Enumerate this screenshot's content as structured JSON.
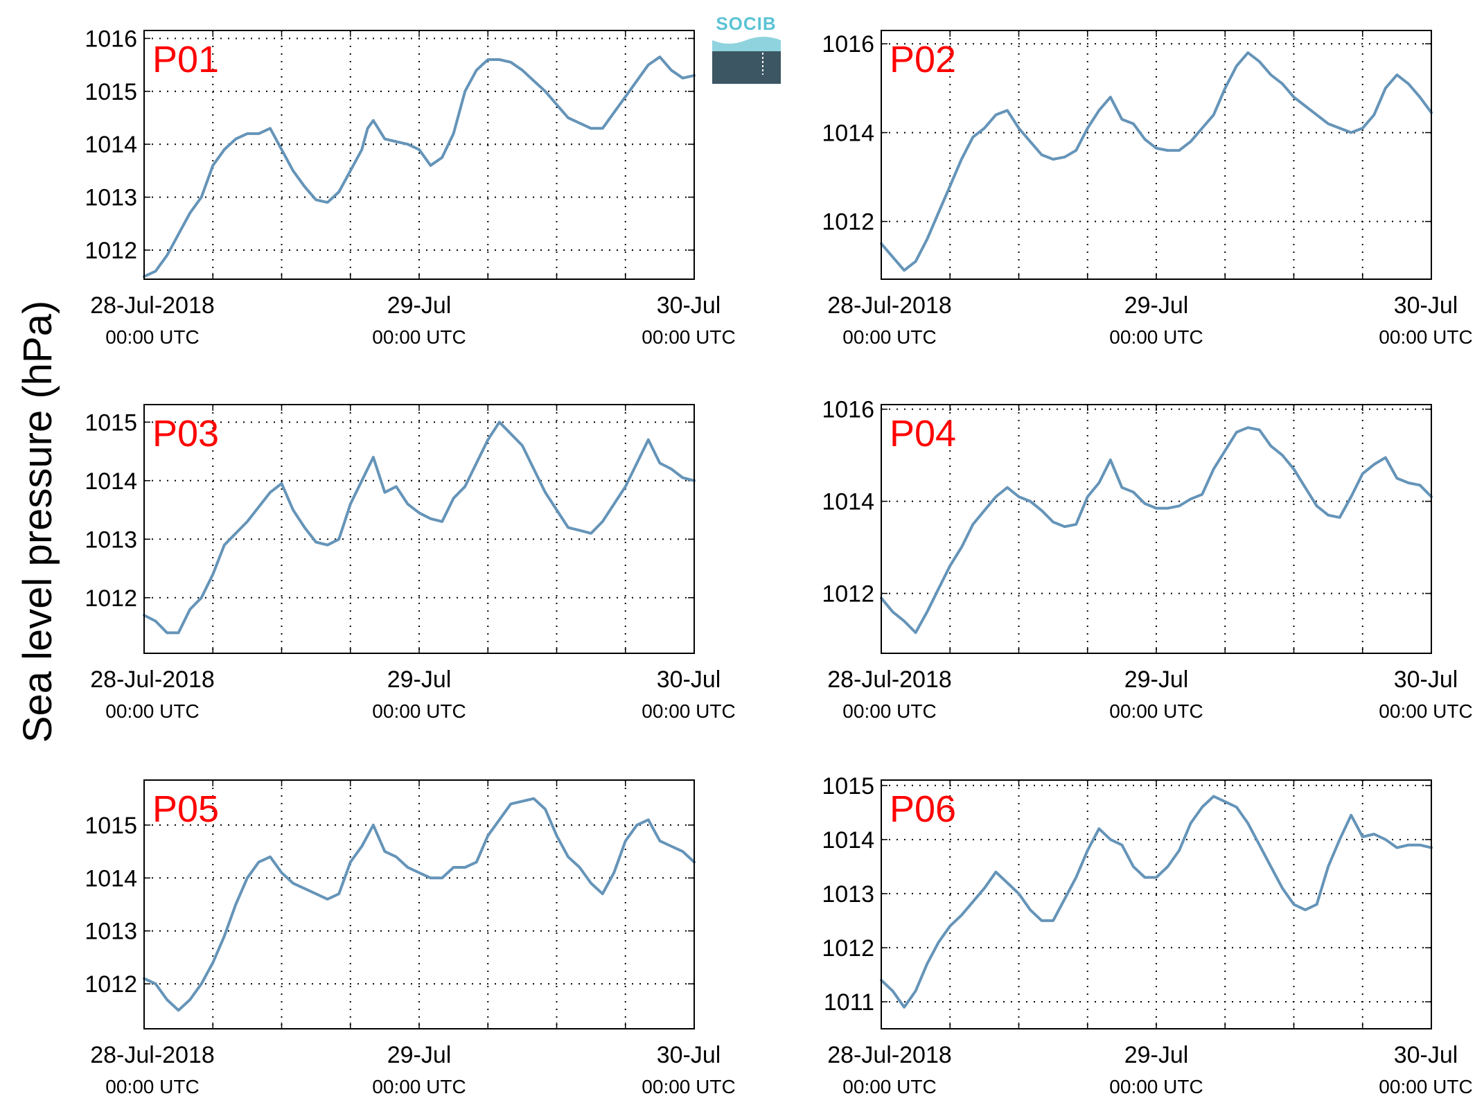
{
  "figure": {
    "ylabel": "Sea level pressure (hPa)",
    "logo_text": "SOCIB",
    "line_color": "#6594b8",
    "label_color": "#ff0000",
    "x_tick_dates": [
      "28-Jul-2018",
      "29-Jul",
      "30-Jul"
    ],
    "x_tick_times": [
      "00:00 UTC",
      "00:00 UTC",
      "00:00 UTC"
    ]
  },
  "chart_data": [
    {
      "type": "line",
      "title": "P01",
      "xlim": [
        0,
        48
      ],
      "ylim": [
        1011.45,
        1016.15
      ],
      "yticks": [
        1012,
        1013,
        1014,
        1015,
        1016
      ],
      "x": [
        0,
        1,
        2,
        3,
        4,
        5,
        6,
        7,
        8,
        9,
        10,
        11,
        12,
        13,
        14,
        15,
        16,
        17,
        17.5,
        18,
        19,
        19.5,
        20,
        21,
        22,
        23,
        24,
        25,
        26,
        27,
        28,
        29,
        30,
        31,
        32,
        33,
        34,
        35,
        36,
        37,
        38,
        39,
        40,
        41,
        42,
        43,
        44,
        45,
        46,
        47,
        48
      ],
      "y": [
        1011.5,
        1011.6,
        1011.9,
        1012.3,
        1012.7,
        1013.0,
        1013.6,
        1013.9,
        1014.1,
        1014.2,
        1014.2,
        1014.3,
        1013.9,
        1013.5,
        1013.2,
        1012.95,
        1012.9,
        1013.1,
        1013.3,
        1013.5,
        1013.9,
        1014.3,
        1014.45,
        1014.1,
        1014.05,
        1014.0,
        1013.9,
        1013.6,
        1013.75,
        1014.2,
        1015.0,
        1015.4,
        1015.6,
        1015.6,
        1015.55,
        1015.4,
        1015.2,
        1015.0,
        1014.75,
        1014.5,
        1014.4,
        1014.3,
        1014.3,
        1014.6,
        1014.9,
        1015.2,
        1015.5,
        1015.65,
        1015.4,
        1015.25,
        1015.3
      ]
    },
    {
      "type": "line",
      "title": "P02",
      "xlim": [
        0,
        48
      ],
      "ylim": [
        1010.7,
        1016.3
      ],
      "yticks": [
        1012,
        1014,
        1016
      ],
      "x": [
        0,
        1,
        2,
        3,
        4,
        5,
        6,
        7,
        8,
        9,
        10,
        11,
        12,
        13,
        14,
        15,
        16,
        17,
        18,
        19,
        20,
        21,
        22,
        23,
        24,
        25,
        26,
        27,
        28,
        29,
        30,
        31,
        32,
        33,
        34,
        35,
        36,
        37,
        38,
        39,
        40,
        41,
        42,
        43,
        44,
        45,
        46,
        47,
        48
      ],
      "y": [
        1011.5,
        1011.2,
        1010.9,
        1011.1,
        1011.6,
        1012.2,
        1012.8,
        1013.4,
        1013.9,
        1014.1,
        1014.4,
        1014.5,
        1014.1,
        1013.8,
        1013.5,
        1013.4,
        1013.45,
        1013.6,
        1014.1,
        1014.5,
        1014.8,
        1014.3,
        1014.2,
        1013.85,
        1013.65,
        1013.6,
        1013.6,
        1013.8,
        1014.1,
        1014.4,
        1015.0,
        1015.5,
        1015.8,
        1015.6,
        1015.3,
        1015.1,
        1014.8,
        1014.6,
        1014.4,
        1014.2,
        1014.1,
        1014.0,
        1014.1,
        1014.4,
        1015.0,
        1015.3,
        1015.1,
        1014.8,
        1014.45
      ]
    },
    {
      "type": "line",
      "title": "P03",
      "xlim": [
        0,
        48
      ],
      "ylim": [
        1011.05,
        1015.3
      ],
      "yticks": [
        1012,
        1013,
        1014,
        1015
      ],
      "x": [
        0,
        1,
        2,
        3,
        4,
        5,
        6,
        7,
        8,
        9,
        10,
        11,
        12,
        13,
        14,
        15,
        16,
        17,
        18,
        19,
        20,
        21,
        22,
        23,
        24,
        25,
        26,
        27,
        28,
        29,
        30,
        31,
        32,
        33,
        34,
        35,
        36,
        37,
        38,
        39,
        40,
        41,
        42,
        43,
        44,
        45,
        46,
        47,
        48
      ],
      "y": [
        1011.7,
        1011.6,
        1011.4,
        1011.4,
        1011.8,
        1012.0,
        1012.4,
        1012.9,
        1013.1,
        1013.3,
        1013.55,
        1013.8,
        1013.95,
        1013.5,
        1013.2,
        1012.95,
        1012.9,
        1013.0,
        1013.6,
        1014.0,
        1014.4,
        1013.8,
        1013.9,
        1013.6,
        1013.45,
        1013.35,
        1013.3,
        1013.7,
        1013.9,
        1014.3,
        1014.7,
        1015.0,
        1014.8,
        1014.6,
        1014.2,
        1013.8,
        1013.5,
        1013.2,
        1013.15,
        1013.1,
        1013.3,
        1013.6,
        1013.9,
        1014.3,
        1014.7,
        1014.3,
        1014.2,
        1014.05,
        1014.0
      ]
    },
    {
      "type": "line",
      "title": "P04",
      "xlim": [
        0,
        48
      ],
      "ylim": [
        1010.7,
        1016.1
      ],
      "yticks": [
        1012,
        1014,
        1016
      ],
      "x": [
        0,
        1,
        2,
        3,
        4,
        5,
        6,
        7,
        8,
        9,
        10,
        11,
        12,
        13,
        14,
        15,
        16,
        17,
        18,
        19,
        20,
        21,
        22,
        23,
        24,
        25,
        26,
        27,
        28,
        29,
        30,
        31,
        32,
        33,
        34,
        35,
        36,
        37,
        38,
        39,
        40,
        41,
        42,
        43,
        44,
        45,
        46,
        47,
        48
      ],
      "y": [
        1011.9,
        1011.6,
        1011.4,
        1011.15,
        1011.6,
        1012.1,
        1012.6,
        1013.0,
        1013.5,
        1013.8,
        1014.1,
        1014.3,
        1014.1,
        1014.0,
        1013.8,
        1013.55,
        1013.45,
        1013.5,
        1014.1,
        1014.4,
        1014.9,
        1014.3,
        1014.2,
        1013.95,
        1013.85,
        1013.85,
        1013.9,
        1014.05,
        1014.15,
        1014.7,
        1015.1,
        1015.5,
        1015.6,
        1015.55,
        1015.2,
        1015.0,
        1014.7,
        1014.3,
        1013.9,
        1013.7,
        1013.65,
        1014.1,
        1014.6,
        1014.8,
        1014.95,
        1014.5,
        1014.4,
        1014.35,
        1014.1
      ]
    },
    {
      "type": "line",
      "title": "P05",
      "xlim": [
        0,
        48
      ],
      "ylim": [
        1011.15,
        1015.85
      ],
      "yticks": [
        1012,
        1013,
        1014,
        1015
      ],
      "x": [
        0,
        1,
        2,
        3,
        4,
        5,
        6,
        7,
        8,
        9,
        10,
        11,
        12,
        13,
        14,
        15,
        16,
        17,
        18,
        19,
        20,
        21,
        22,
        23,
        24,
        25,
        26,
        27,
        28,
        29,
        30,
        31,
        32,
        33,
        34,
        35,
        36,
        37,
        38,
        39,
        40,
        41,
        42,
        43,
        44,
        45,
        46,
        47,
        48
      ],
      "y": [
        1012.1,
        1012.0,
        1011.7,
        1011.5,
        1011.7,
        1012.0,
        1012.4,
        1012.9,
        1013.5,
        1014.0,
        1014.3,
        1014.4,
        1014.1,
        1013.9,
        1013.8,
        1013.7,
        1013.6,
        1013.7,
        1014.3,
        1014.6,
        1015.0,
        1014.5,
        1014.4,
        1014.2,
        1014.1,
        1014.0,
        1014.0,
        1014.2,
        1014.2,
        1014.3,
        1014.8,
        1015.1,
        1015.4,
        1015.45,
        1015.5,
        1015.3,
        1014.8,
        1014.4,
        1014.2,
        1013.9,
        1013.7,
        1014.1,
        1014.7,
        1015.0,
        1015.1,
        1014.7,
        1014.6,
        1014.5,
        1014.3
      ]
    },
    {
      "type": "line",
      "title": "P06",
      "xlim": [
        0,
        48
      ],
      "ylim": [
        1010.5,
        1015.1
      ],
      "yticks": [
        1011,
        1012,
        1013,
        1014,
        1015
      ],
      "x": [
        0,
        1,
        2,
        3,
        4,
        5,
        6,
        7,
        8,
        9,
        10,
        11,
        12,
        13,
        14,
        15,
        16,
        17,
        18,
        19,
        20,
        21,
        22,
        23,
        24,
        25,
        26,
        27,
        28,
        29,
        30,
        31,
        32,
        33,
        34,
        35,
        36,
        37,
        38,
        39,
        40,
        41,
        42,
        43,
        44,
        45,
        46,
        47,
        48
      ],
      "y": [
        1011.4,
        1011.2,
        1010.9,
        1011.2,
        1011.7,
        1012.1,
        1012.4,
        1012.6,
        1012.85,
        1013.1,
        1013.4,
        1013.2,
        1013.0,
        1012.7,
        1012.5,
        1012.5,
        1012.9,
        1013.3,
        1013.8,
        1014.2,
        1014.0,
        1013.9,
        1013.5,
        1013.3,
        1013.3,
        1013.5,
        1013.8,
        1014.3,
        1014.6,
        1014.8,
        1014.7,
        1014.6,
        1014.3,
        1013.9,
        1013.5,
        1013.1,
        1012.8,
        1012.7,
        1012.8,
        1013.5,
        1014.0,
        1014.45,
        1014.05,
        1014.1,
        1014.0,
        1013.85,
        1013.9,
        1013.9,
        1013.85
      ]
    }
  ]
}
